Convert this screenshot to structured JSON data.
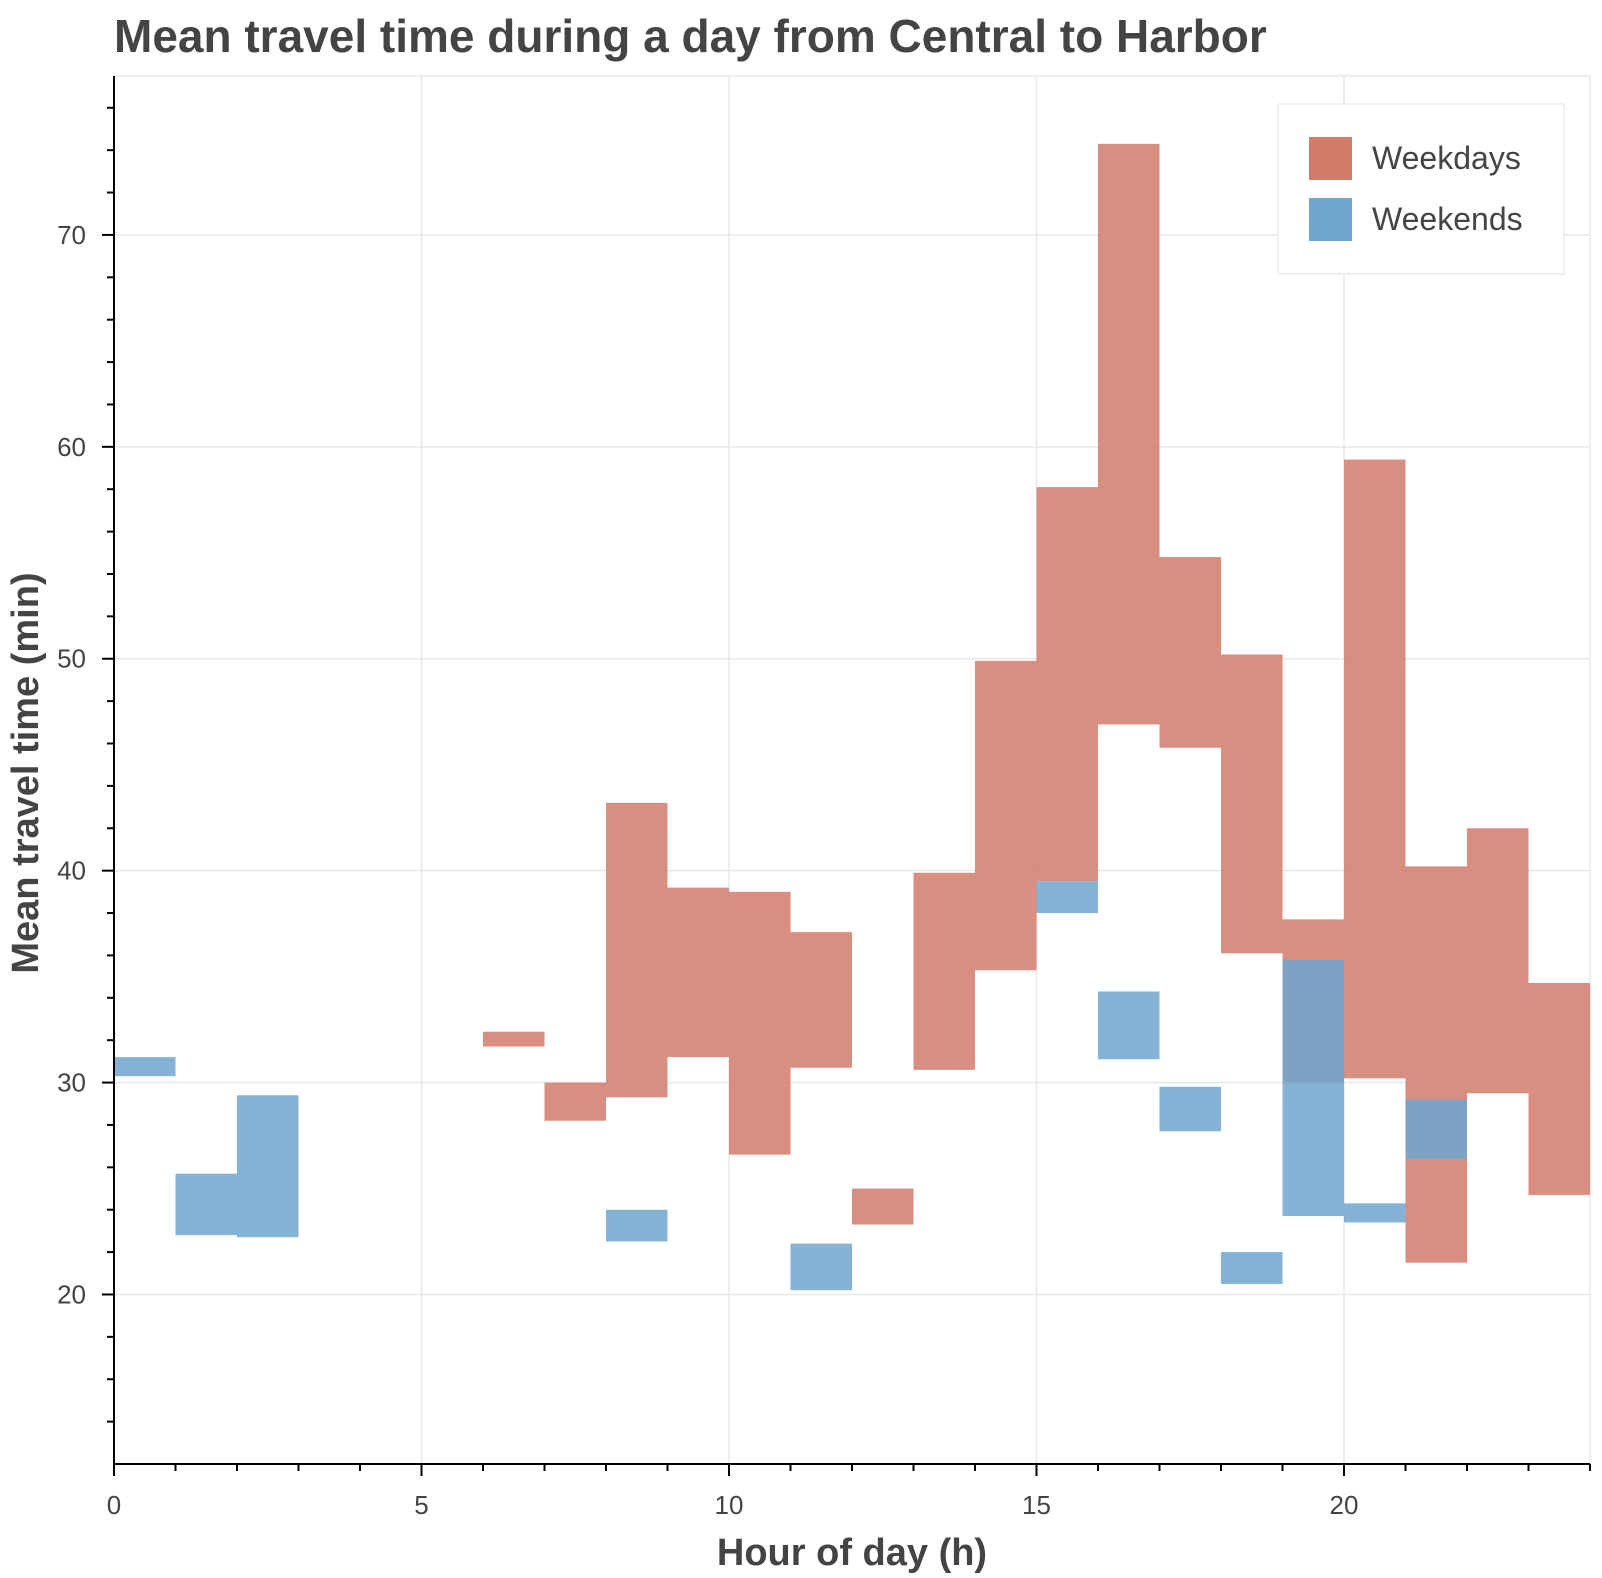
{
  "chart_data": {
    "type": "bar",
    "title": "Mean travel time during a day from Central to Harbor",
    "xlabel": "Hour of day (h)",
    "ylabel": "Mean travel time (min)",
    "xlim": [
      0,
      24
    ],
    "ylim": [
      12,
      77.5
    ],
    "x_ticks": [
      0,
      5,
      10,
      15,
      20
    ],
    "y_ticks": [
      20,
      30,
      40,
      50,
      60,
      70
    ],
    "grid": true,
    "legend_position": "top-right",
    "series": [
      {
        "name": "Weekdays",
        "color": "#d17b6b",
        "bins": [
          {
            "x": [
              6,
              7
            ],
            "y": [
              31.7,
              32.4
            ]
          },
          {
            "x": [
              7,
              8
            ],
            "y": [
              28.2,
              30.0
            ]
          },
          {
            "x": [
              8,
              9
            ],
            "y": [
              29.3,
              43.2
            ]
          },
          {
            "x": [
              9,
              10
            ],
            "y": [
              31.2,
              39.2
            ]
          },
          {
            "x": [
              10,
              11
            ],
            "y": [
              26.6,
              39.0
            ]
          },
          {
            "x": [
              11,
              12
            ],
            "y": [
              30.7,
              37.1
            ]
          },
          {
            "x": [
              12,
              13
            ],
            "y": [
              23.3,
              25.0
            ]
          },
          {
            "x": [
              13,
              14
            ],
            "y": [
              30.6,
              39.9
            ]
          },
          {
            "x": [
              14,
              15
            ],
            "y": [
              35.3,
              49.9
            ]
          },
          {
            "x": [
              15,
              16
            ],
            "y": [
              39.5,
              58.1
            ]
          },
          {
            "x": [
              16,
              17
            ],
            "y": [
              46.9,
              74.3
            ]
          },
          {
            "x": [
              17,
              18
            ],
            "y": [
              45.8,
              54.8
            ]
          },
          {
            "x": [
              18,
              19
            ],
            "y": [
              36.1,
              50.2
            ]
          },
          {
            "x": [
              19,
              20
            ],
            "y": [
              30.0,
              37.7
            ]
          },
          {
            "x": [
              20,
              21
            ],
            "y": [
              30.2,
              59.4
            ]
          },
          {
            "x": [
              21,
              22
            ],
            "y": [
              21.5,
              40.2
            ]
          },
          {
            "x": [
              22,
              23
            ],
            "y": [
              29.5,
              42.0
            ]
          },
          {
            "x": [
              23,
              24
            ],
            "y": [
              24.7,
              34.7
            ]
          }
        ]
      },
      {
        "name": "Weekends",
        "color": "#6fa6cf",
        "bins": [
          {
            "x": [
              0,
              1
            ],
            "y": [
              30.3,
              31.2
            ]
          },
          {
            "x": [
              1,
              2
            ],
            "y": [
              22.8,
              25.7
            ]
          },
          {
            "x": [
              2,
              3
            ],
            "y": [
              22.7,
              29.4
            ]
          },
          {
            "x": [
              8,
              9
            ],
            "y": [
              22.5,
              24.0
            ]
          },
          {
            "x": [
              11,
              12
            ],
            "y": [
              20.2,
              22.4
            ]
          },
          {
            "x": [
              15,
              16
            ],
            "y": [
              38.0,
              39.5
            ]
          },
          {
            "x": [
              16,
              17
            ],
            "y": [
              31.1,
              34.3
            ]
          },
          {
            "x": [
              17,
              18
            ],
            "y": [
              27.7,
              29.8
            ]
          },
          {
            "x": [
              18,
              19
            ],
            "y": [
              20.5,
              22.0
            ]
          },
          {
            "x": [
              19,
              20
            ],
            "y": [
              23.7,
              35.8
            ]
          },
          {
            "x": [
              20,
              21
            ],
            "y": [
              23.4,
              24.3
            ]
          },
          {
            "x": [
              21,
              22
            ],
            "y": [
              26.4,
              29.2
            ]
          }
        ]
      }
    ]
  }
}
